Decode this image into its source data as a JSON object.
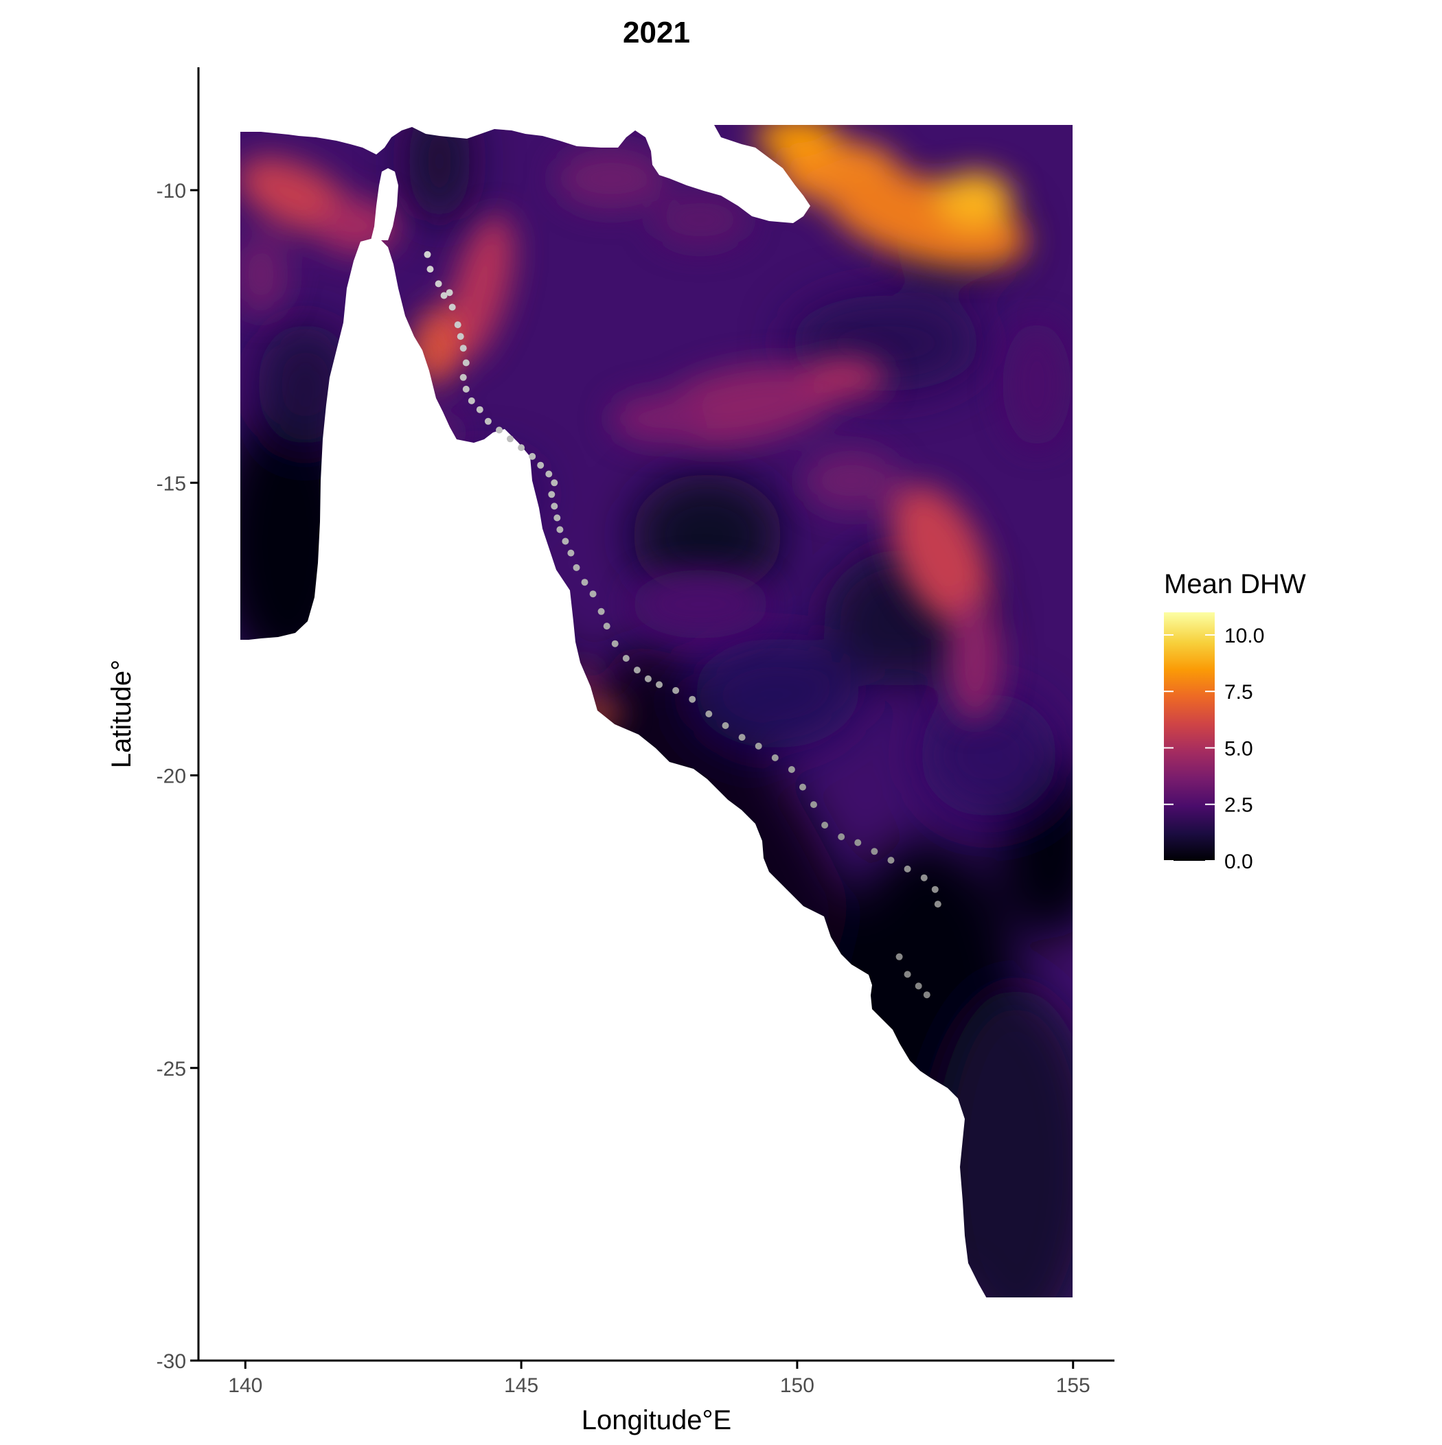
{
  "chart_data": {
    "type": "heatmap",
    "title": "2021",
    "xlabel": "Longitude°E",
    "ylabel": "Latitude°",
    "xlim": [
      139.15,
      155.75
    ],
    "ylim": [
      -30,
      -7.9
    ],
    "x_ticks": [
      140,
      145,
      150,
      155
    ],
    "x_tick_labels": [
      "140",
      "145",
      "150",
      "155"
    ],
    "y_ticks": [
      -10,
      -15,
      -20,
      -25,
      -30
    ],
    "y_tick_labels": [
      "-10",
      "-15",
      "-20",
      "-25",
      "-30"
    ],
    "raster_extent": {
      "lon": [
        140,
        155
      ],
      "lat": [
        -28.95,
        -8.95
      ]
    },
    "grid": false,
    "legend": {
      "title": "Mean DHW",
      "placement": "right",
      "range": [
        0,
        11
      ],
      "ticks": [
        0,
        2.5,
        5,
        7.5,
        10
      ],
      "tick_labels": [
        "0.0",
        "2.5",
        "5.0",
        "7.5",
        "10.0"
      ],
      "colormap": "inferno",
      "colors": [
        "#000004",
        "#1b0c41",
        "#4a0c6b",
        "#781c6d",
        "#a52c60",
        "#cf4446",
        "#ed6925",
        "#fb9b06",
        "#f7d13d",
        "#fcffa4"
      ]
    },
    "land_color": "#ffffff",
    "point_color": "#bdbdbd",
    "sites": [
      [
        143.3,
        -11.1
      ],
      [
        143.35,
        -11.35
      ],
      [
        143.5,
        -11.6
      ],
      [
        143.6,
        -11.8
      ],
      [
        143.7,
        -11.75
      ],
      [
        143.75,
        -12.0
      ],
      [
        143.85,
        -12.3
      ],
      [
        143.9,
        -12.5
      ],
      [
        143.95,
        -12.7
      ],
      [
        144.0,
        -12.95
      ],
      [
        143.95,
        -13.2
      ],
      [
        144.0,
        -13.4
      ],
      [
        144.1,
        -13.6
      ],
      [
        144.25,
        -13.75
      ],
      [
        144.4,
        -13.95
      ],
      [
        144.6,
        -14.1
      ],
      [
        144.8,
        -14.25
      ],
      [
        145.0,
        -14.4
      ],
      [
        145.2,
        -14.55
      ],
      [
        145.35,
        -14.7
      ],
      [
        145.5,
        -14.85
      ],
      [
        145.6,
        -15.0
      ],
      [
        145.55,
        -15.2
      ],
      [
        145.6,
        -15.4
      ],
      [
        145.65,
        -15.6
      ],
      [
        145.7,
        -15.8
      ],
      [
        145.8,
        -16.0
      ],
      [
        145.9,
        -16.2
      ],
      [
        146.0,
        -16.45
      ],
      [
        146.15,
        -16.7
      ],
      [
        146.3,
        -16.9
      ],
      [
        146.45,
        -17.2
      ],
      [
        146.55,
        -17.45
      ],
      [
        146.7,
        -17.75
      ],
      [
        146.9,
        -18.0
      ],
      [
        147.1,
        -18.2
      ],
      [
        147.3,
        -18.35
      ],
      [
        147.5,
        -18.45
      ],
      [
        147.8,
        -18.55
      ],
      [
        148.1,
        -18.7
      ],
      [
        148.4,
        -18.95
      ],
      [
        148.7,
        -19.15
      ],
      [
        149.0,
        -19.35
      ],
      [
        149.3,
        -19.5
      ],
      [
        149.6,
        -19.7
      ],
      [
        149.9,
        -19.9
      ],
      [
        150.1,
        -20.2
      ],
      [
        150.3,
        -20.5
      ],
      [
        150.5,
        -20.85
      ],
      [
        150.8,
        -21.05
      ],
      [
        151.1,
        -21.15
      ],
      [
        151.4,
        -21.3
      ],
      [
        151.7,
        -21.45
      ],
      [
        152.0,
        -21.6
      ],
      [
        152.3,
        -21.75
      ],
      [
        152.5,
        -21.95
      ],
      [
        152.55,
        -22.2
      ],
      [
        151.85,
        -23.1
      ],
      [
        152.0,
        -23.4
      ],
      [
        152.2,
        -23.6
      ],
      [
        152.35,
        -23.75
      ]
    ]
  }
}
